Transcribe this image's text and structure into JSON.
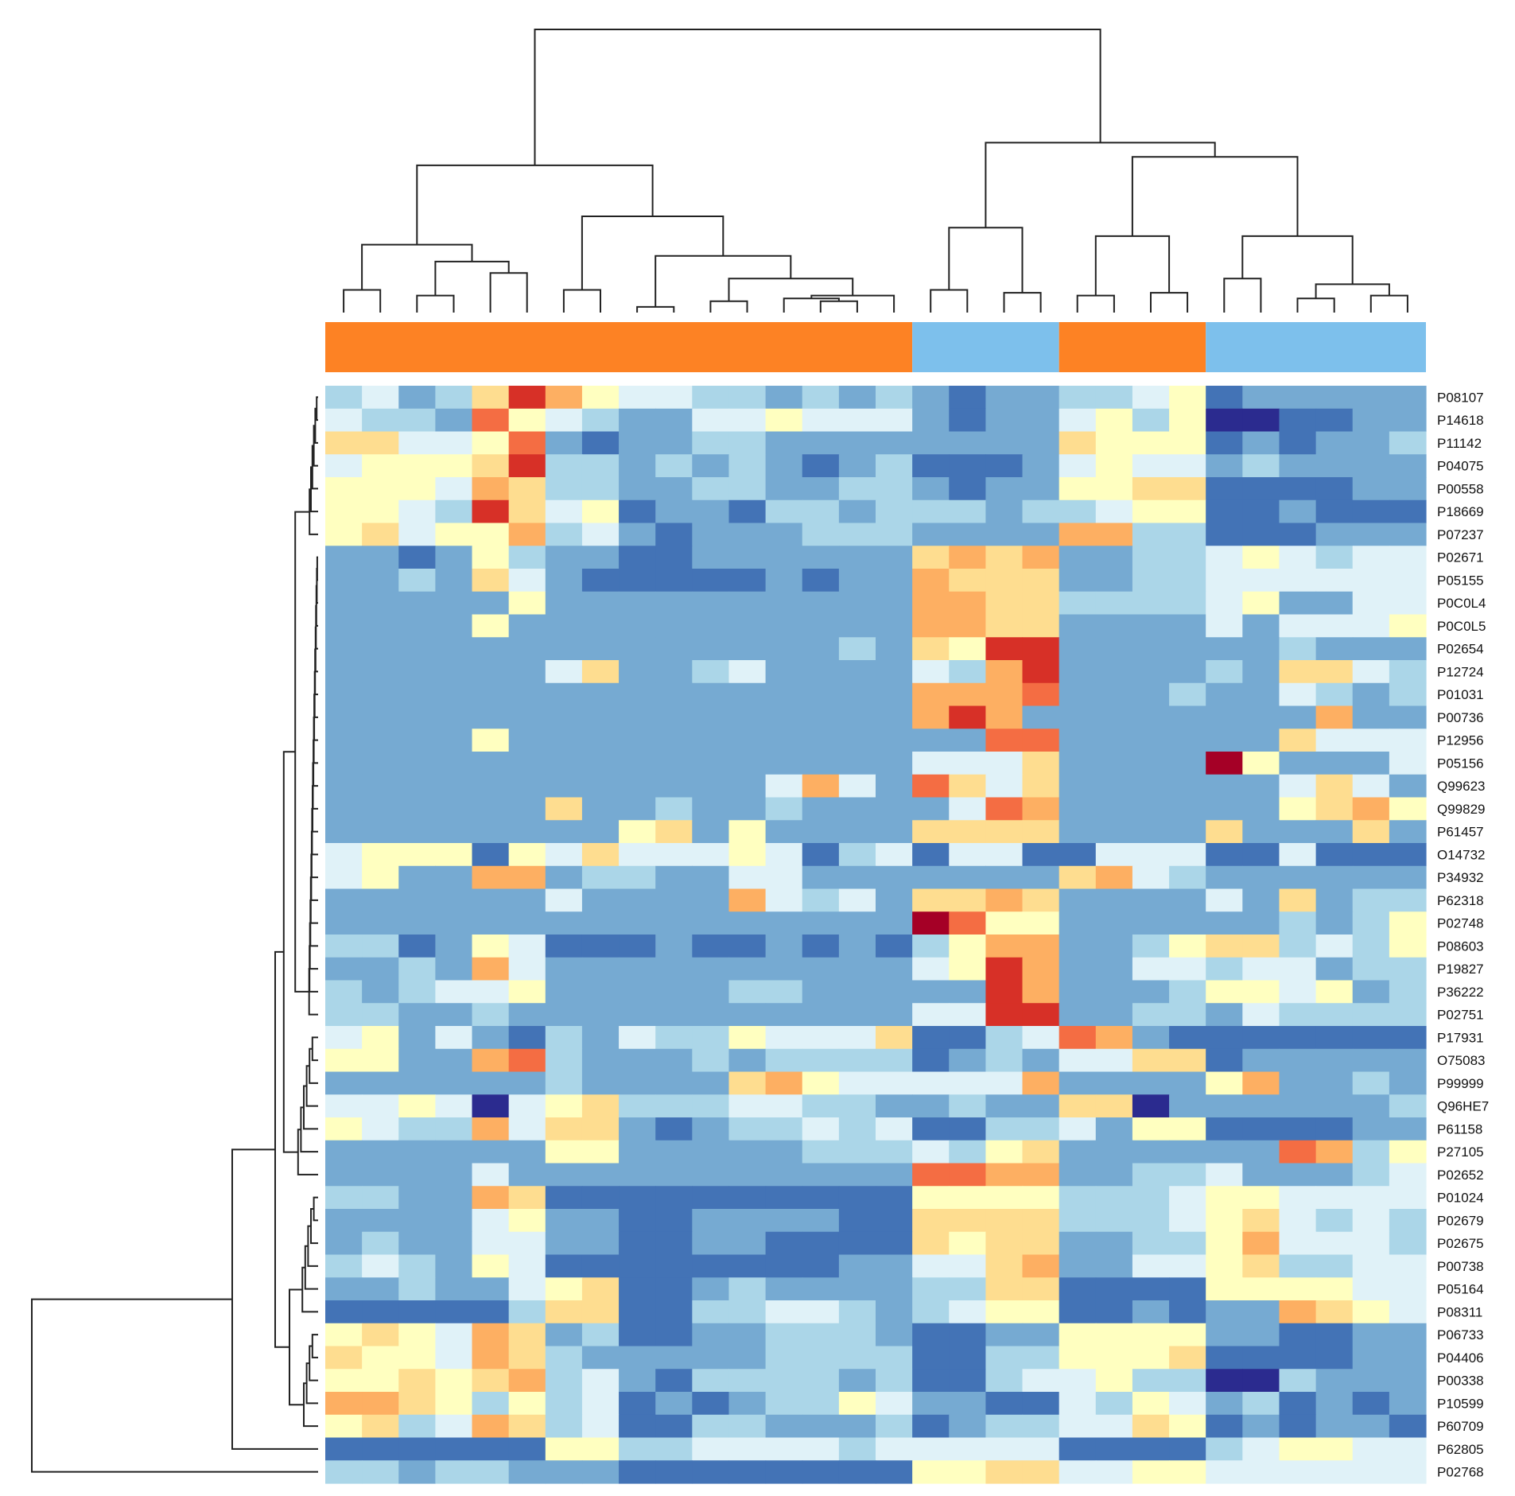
{
  "chart_data": {
    "type": "heatmap",
    "title": "",
    "xlabel": "",
    "ylabel": "",
    "rows": [
      "P08107",
      "P14618",
      "P11142",
      "P04075",
      "P00558",
      "P18669",
      "P07237",
      "P02671",
      "P05155",
      "P0C0L4",
      "P0C0L5",
      "P02654",
      "P12724",
      "P01031",
      "P00736",
      "P12956",
      "P05156",
      "Q99623",
      "Q99829",
      "P61457",
      "O14732",
      "P34932",
      "P62318",
      "P02748",
      "P08603",
      "P19827",
      "P36222",
      "P02751",
      "P17931",
      "O75083",
      "P99999",
      "Q96HE7",
      "P61158",
      "P27105",
      "P02652",
      "P01024",
      "P02679",
      "P02675",
      "P00738",
      "P05164",
      "P08311",
      "P06733",
      "P04406",
      "P00338",
      "P10599",
      "P60709",
      "P62805",
      "P02768"
    ],
    "column_groups": [
      {
        "color": "#fd8224",
        "count": 16
      },
      {
        "color": "#7dc0ec",
        "count": 4
      },
      {
        "color": "#fd8224",
        "count": 4
      },
      {
        "color": "#7dc0ec",
        "count": 6
      }
    ],
    "color_scale": [
      "#2b2b8f",
      "#4373b6",
      "#76aad2",
      "#abd6e8",
      "#e0f2f8",
      "#ffffc0",
      "#fedd90",
      "#fdaf62",
      "#f46d43",
      "#d73027",
      "#a50026"
    ],
    "value_range": [
      -5,
      5
    ],
    "values": [
      [
        -2,
        -1,
        -3,
        -2,
        1,
        4,
        2,
        0,
        -1,
        -1,
        -2,
        -2,
        -3,
        -2,
        -3,
        -2,
        -3,
        -4,
        -3,
        -3,
        -2,
        -2,
        -1,
        0,
        -4,
        -3,
        -3,
        -3,
        -3,
        -3
      ],
      [
        -1,
        -2,
        -2,
        -3,
        3,
        0,
        -1,
        -2,
        -3,
        -3,
        -1,
        -1,
        0,
        -1,
        -1,
        -1,
        -3,
        -4,
        -3,
        -3,
        -1,
        0,
        -2,
        0,
        -5,
        -5,
        -4,
        -4,
        -3,
        -3
      ],
      [
        1,
        1,
        -1,
        -1,
        0,
        3,
        -3,
        -4,
        -3,
        -3,
        -2,
        -2,
        -3,
        -3,
        -3,
        -3,
        -3,
        -3,
        -3,
        -3,
        1,
        0,
        0,
        0,
        -4,
        -3,
        -4,
        -3,
        -3,
        -2
      ],
      [
        -1,
        0,
        0,
        0,
        1,
        4,
        -2,
        -2,
        -3,
        -2,
        -3,
        -2,
        -3,
        -4,
        -3,
        -2,
        -4,
        -4,
        -4,
        -3,
        -1,
        0,
        -1,
        -1,
        -3,
        -2,
        -3,
        -3,
        -3,
        -3
      ],
      [
        0,
        0,
        0,
        -1,
        2,
        1,
        -2,
        -2,
        -3,
        -3,
        -2,
        -2,
        -3,
        -3,
        -2,
        -2,
        -3,
        -4,
        -3,
        -3,
        0,
        0,
        1,
        1,
        -4,
        -4,
        -4,
        -4,
        -3,
        -3
      ],
      [
        0,
        0,
        -1,
        -2,
        4,
        1,
        -1,
        0,
        -4,
        -3,
        -3,
        -4,
        -2,
        -2,
        -3,
        -2,
        -2,
        -2,
        -3,
        -2,
        -2,
        -1,
        0,
        0,
        -4,
        -4,
        -3,
        -4,
        -4,
        -4
      ],
      [
        0,
        1,
        -1,
        0,
        0,
        2,
        -2,
        -1,
        -3,
        -4,
        -3,
        -3,
        -3,
        -2,
        -2,
        -2,
        -3,
        -3,
        -3,
        -3,
        2,
        2,
        -2,
        -2,
        -4,
        -4,
        -4,
        -3,
        -3,
        -3
      ],
      [
        -3,
        -3,
        -4,
        -3,
        0,
        -2,
        -3,
        -3,
        -4,
        -4,
        -3,
        -3,
        -3,
        -3,
        -3,
        -3,
        1,
        2,
        1,
        2,
        -3,
        -3,
        -2,
        -2,
        -1,
        0,
        -1,
        -2,
        -1,
        -1
      ],
      [
        -3,
        -3,
        -2,
        -3,
        1,
        -1,
        -3,
        -4,
        -4,
        -4,
        -4,
        -4,
        -3,
        -4,
        -3,
        -3,
        2,
        1,
        1,
        1,
        -3,
        -3,
        -2,
        -2,
        -1,
        -1,
        -1,
        -1,
        -1,
        -1
      ],
      [
        -3,
        -3,
        -3,
        -3,
        -3,
        0,
        -3,
        -3,
        -3,
        -3,
        -3,
        -3,
        -3,
        -3,
        -3,
        -3,
        2,
        2,
        1,
        1,
        -2,
        -2,
        -2,
        -2,
        -1,
        0,
        -3,
        -3,
        -1,
        -1
      ],
      [
        -3,
        -3,
        -3,
        -3,
        0,
        -3,
        -3,
        -3,
        -3,
        -3,
        -3,
        -3,
        -3,
        -3,
        -3,
        -3,
        2,
        2,
        1,
        1,
        -3,
        -3,
        -3,
        -3,
        -1,
        -3,
        -1,
        -1,
        -1,
        0
      ],
      [
        -3,
        -3,
        -3,
        -3,
        -3,
        -3,
        -3,
        -3,
        -3,
        -3,
        -3,
        -3,
        -3,
        -3,
        -2,
        -3,
        1,
        0,
        4,
        4,
        -3,
        -3,
        -3,
        -3,
        -3,
        -3,
        -2,
        -3,
        -3,
        -3
      ],
      [
        -3,
        -3,
        -3,
        -3,
        -3,
        -3,
        -1,
        1,
        -3,
        -3,
        -2,
        -1,
        -3,
        -3,
        -3,
        -3,
        -1,
        -2,
        2,
        4,
        -3,
        -3,
        -3,
        -3,
        -2,
        -3,
        1,
        1,
        -1,
        -2
      ],
      [
        -3,
        -3,
        -3,
        -3,
        -3,
        -3,
        -3,
        -3,
        -3,
        -3,
        -3,
        -3,
        -3,
        -3,
        -3,
        -3,
        2,
        2,
        2,
        3,
        -3,
        -3,
        -3,
        -2,
        -3,
        -3,
        -1,
        -2,
        -3,
        -2
      ],
      [
        -3,
        -3,
        -3,
        -3,
        -3,
        -3,
        -3,
        -3,
        -3,
        -3,
        -3,
        -3,
        -3,
        -3,
        -3,
        -3,
        2,
        4,
        2,
        -3,
        -3,
        -3,
        -3,
        -3,
        -3,
        -3,
        -3,
        2,
        -3,
        -3
      ],
      [
        -3,
        -3,
        -3,
        -3,
        0,
        -3,
        -3,
        -3,
        -3,
        -3,
        -3,
        -3,
        -3,
        -3,
        -3,
        -3,
        -3,
        -3,
        3,
        3,
        -3,
        -3,
        -3,
        -3,
        -3,
        -3,
        1,
        -1,
        -1,
        -1
      ],
      [
        -3,
        -3,
        -3,
        -3,
        -3,
        -3,
        -3,
        -3,
        -3,
        -3,
        -3,
        -3,
        -3,
        -3,
        -3,
        -3,
        -1,
        -1,
        -1,
        1,
        -3,
        -3,
        -3,
        -3,
        5,
        0,
        -3,
        -3,
        -3,
        -1
      ],
      [
        -3,
        -3,
        -3,
        -3,
        -3,
        -3,
        -3,
        -3,
        -3,
        -3,
        -3,
        -3,
        -1,
        2,
        -1,
        -3,
        3,
        1,
        -1,
        1,
        -3,
        -3,
        -3,
        -3,
        -3,
        -3,
        -1,
        1,
        -1,
        -3
      ],
      [
        -3,
        -3,
        -3,
        -3,
        -3,
        -3,
        1,
        -3,
        -3,
        -2,
        -3,
        -3,
        -2,
        -3,
        -3,
        -3,
        -3,
        -1,
        3,
        2,
        -3,
        -3,
        -3,
        -3,
        -3,
        -3,
        0,
        1,
        2,
        0
      ],
      [
        -3,
        -3,
        -3,
        -3,
        -3,
        -3,
        -3,
        -3,
        0,
        1,
        -3,
        0,
        -3,
        -3,
        -3,
        -3,
        1,
        1,
        1,
        1,
        -3,
        -3,
        -3,
        -3,
        1,
        -3,
        -3,
        -3,
        1,
        -3
      ],
      [
        -1,
        0,
        0,
        0,
        -4,
        0,
        -1,
        1,
        -1,
        -1,
        -1,
        0,
        -1,
        -4,
        -2,
        -1,
        -4,
        -1,
        -1,
        -4,
        -4,
        -1,
        -1,
        -1,
        -4,
        -4,
        -1,
        -4,
        -4,
        -4
      ],
      [
        -1,
        0,
        -3,
        -3,
        2,
        2,
        -3,
        -2,
        -2,
        -3,
        -3,
        -1,
        -1,
        -3,
        -3,
        -3,
        -3,
        -3,
        -3,
        -3,
        1,
        2,
        -1,
        -2,
        -3,
        -3,
        -3,
        -3,
        -3,
        -3
      ],
      [
        -3,
        -3,
        -3,
        -3,
        -3,
        -3,
        -1,
        -3,
        -3,
        -3,
        -3,
        2,
        -1,
        -2,
        -1,
        -3,
        1,
        1,
        2,
        1,
        -3,
        -3,
        -3,
        -3,
        -1,
        -3,
        1,
        -3,
        -2,
        -2
      ],
      [
        -3,
        -3,
        -3,
        -3,
        -3,
        -3,
        -3,
        -3,
        -3,
        -3,
        -3,
        -3,
        -3,
        -3,
        -3,
        -3,
        5,
        3,
        0,
        0,
        -3,
        -3,
        -3,
        -3,
        -3,
        -3,
        -2,
        -3,
        -2,
        0
      ],
      [
        -2,
        -2,
        -4,
        -3,
        0,
        -1,
        -4,
        -4,
        -4,
        -3,
        -4,
        -4,
        -3,
        -4,
        -3,
        -4,
        -2,
        0,
        2,
        2,
        -3,
        -3,
        -2,
        0,
        1,
        1,
        -2,
        -1,
        -2,
        0
      ],
      [
        -3,
        -3,
        -2,
        -3,
        2,
        -1,
        -3,
        -3,
        -3,
        -3,
        -3,
        -3,
        -3,
        -3,
        -3,
        -3,
        -1,
        0,
        4,
        2,
        -3,
        -3,
        -1,
        -1,
        -2,
        -1,
        -1,
        -3,
        -2,
        -2
      ],
      [
        -2,
        -3,
        -2,
        -1,
        -1,
        0,
        -3,
        -3,
        -3,
        -3,
        -3,
        -2,
        -2,
        -3,
        -3,
        -3,
        -3,
        -3,
        4,
        2,
        -3,
        -3,
        -3,
        -2,
        0,
        0,
        -1,
        0,
        -3,
        -2
      ],
      [
        -2,
        -2,
        -3,
        -3,
        -2,
        -3,
        -3,
        -3,
        -3,
        -3,
        -3,
        -3,
        -3,
        -3,
        -3,
        -3,
        -1,
        -1,
        4,
        4,
        -3,
        -3,
        -2,
        -2,
        -3,
        -1,
        -2,
        -2,
        -2,
        -2
      ],
      [
        -1,
        0,
        -3,
        -1,
        -3,
        -4,
        -2,
        -3,
        -1,
        -2,
        -2,
        0,
        -1,
        -1,
        -1,
        1,
        -4,
        -4,
        -2,
        -1,
        3,
        2,
        -3,
        -4,
        -4,
        -4,
        -4,
        -4,
        -4,
        -4
      ],
      [
        0,
        0,
        -3,
        -3,
        2,
        3,
        -2,
        -3,
        -3,
        -3,
        -2,
        -3,
        -2,
        -2,
        -2,
        -2,
        -4,
        -3,
        -2,
        -3,
        -1,
        -1,
        1,
        1,
        -4,
        -3,
        -3,
        -3,
        -3,
        -3
      ],
      [
        -3,
        -3,
        -3,
        -3,
        -3,
        -3,
        -2,
        -3,
        -3,
        -3,
        -3,
        1,
        2,
        0,
        -1,
        -1,
        -1,
        -1,
        -1,
        2,
        -3,
        -3,
        -3,
        -3,
        0,
        2,
        -3,
        -3,
        -2,
        -3
      ],
      [
        -1,
        -1,
        0,
        -1,
        -5,
        -1,
        0,
        1,
        -2,
        -2,
        -2,
        -1,
        -1,
        -2,
        -2,
        -3,
        -3,
        -2,
        -3,
        -3,
        1,
        1,
        -5,
        -3,
        -3,
        -3,
        -3,
        -3,
        -3,
        -2
      ],
      [
        0,
        -1,
        -2,
        -2,
        2,
        -1,
        1,
        1,
        -3,
        -4,
        -3,
        -2,
        -2,
        -1,
        -2,
        -1,
        -4,
        -4,
        -2,
        -2,
        -1,
        -3,
        0,
        0,
        -4,
        -4,
        -4,
        -4,
        -3,
        -3
      ],
      [
        -3,
        -3,
        -3,
        -3,
        -3,
        -3,
        0,
        0,
        -3,
        -3,
        -3,
        -3,
        -3,
        -2,
        -2,
        -2,
        -1,
        -2,
        0,
        1,
        -3,
        -3,
        -3,
        -3,
        -3,
        -3,
        3,
        2,
        -2,
        0
      ],
      [
        -3,
        -3,
        -3,
        -3,
        -1,
        -3,
        -3,
        -3,
        -3,
        -3,
        -3,
        -3,
        -3,
        -3,
        -3,
        -3,
        3,
        3,
        2,
        2,
        -3,
        -3,
        -2,
        -2,
        -1,
        -3,
        -3,
        -3,
        -2,
        -1
      ],
      [
        -2,
        -2,
        -3,
        -3,
        2,
        1,
        -4,
        -4,
        -4,
        -4,
        -4,
        -4,
        -4,
        -4,
        -4,
        -4,
        0,
        0,
        0,
        0,
        -2,
        -2,
        -2,
        -1,
        0,
        0,
        -1,
        -1,
        -1,
        -1
      ],
      [
        -3,
        -3,
        -3,
        -3,
        -1,
        0,
        -3,
        -3,
        -4,
        -4,
        -3,
        -3,
        -3,
        -3,
        -4,
        -4,
        1,
        1,
        1,
        1,
        -2,
        -2,
        -2,
        -1,
        0,
        1,
        -1,
        -2,
        -1,
        -2
      ],
      [
        -3,
        -2,
        -3,
        -3,
        -1,
        -1,
        -3,
        -3,
        -4,
        -4,
        -3,
        -3,
        -4,
        -4,
        -4,
        -4,
        1,
        0,
        1,
        1,
        -3,
        -3,
        -2,
        -2,
        0,
        2,
        -1,
        -1,
        -1,
        -2
      ],
      [
        -2,
        -1,
        -2,
        -3,
        0,
        -1,
        -4,
        -4,
        -4,
        -4,
        -4,
        -4,
        -4,
        -4,
        -3,
        -3,
        -1,
        -1,
        1,
        2,
        -3,
        -3,
        -1,
        -1,
        0,
        1,
        -2,
        -2,
        -1,
        -1
      ],
      [
        -3,
        -3,
        -2,
        -3,
        -3,
        -1,
        0,
        1,
        -4,
        -4,
        -3,
        -2,
        -3,
        -3,
        -3,
        -3,
        -2,
        -2,
        1,
        1,
        -4,
        -4,
        -4,
        -4,
        0,
        0,
        0,
        0,
        -1,
        -1
      ],
      [
        -4,
        -4,
        -4,
        -4,
        -4,
        -2,
        1,
        1,
        -4,
        -4,
        -2,
        -2,
        -1,
        -1,
        -2,
        -3,
        -2,
        -1,
        0,
        0,
        -4,
        -4,
        -3,
        -4,
        -3,
        -3,
        2,
        1,
        0,
        -1
      ],
      [
        0,
        1,
        0,
        -1,
        2,
        1,
        -3,
        -2,
        -4,
        -4,
        -3,
        -3,
        -2,
        -2,
        -2,
        -3,
        -4,
        -4,
        -3,
        -3,
        0,
        0,
        0,
        0,
        -3,
        -3,
        -4,
        -4,
        -3,
        -3
      ],
      [
        1,
        0,
        0,
        -1,
        2,
        1,
        -2,
        -3,
        -3,
        -3,
        -3,
        -3,
        -2,
        -2,
        -2,
        -2,
        -4,
        -4,
        -2,
        -2,
        0,
        0,
        0,
        1,
        -4,
        -4,
        -4,
        -4,
        -3,
        -3
      ],
      [
        0,
        0,
        1,
        0,
        1,
        2,
        -2,
        -1,
        -3,
        -4,
        -2,
        -2,
        -2,
        -2,
        -3,
        -2,
        -4,
        -4,
        -2,
        -1,
        -1,
        0,
        -2,
        -2,
        -5,
        -5,
        -2,
        -3,
        -3,
        -3
      ],
      [
        2,
        2,
        1,
        0,
        -2,
        0,
        -2,
        -1,
        -4,
        -3,
        -4,
        -3,
        -2,
        -2,
        0,
        -1,
        -3,
        -3,
        -4,
        -4,
        -1,
        -2,
        0,
        -1,
        -3,
        -2,
        -4,
        -3,
        -4,
        -3
      ],
      [
        0,
        1,
        -2,
        -1,
        2,
        1,
        -2,
        -1,
        -4,
        -4,
        -2,
        -2,
        -3,
        -3,
        -3,
        -2,
        -4,
        -3,
        -2,
        -2,
        -1,
        -1,
        1,
        0,
        -4,
        -3,
        -4,
        -3,
        -3,
        -4
      ],
      [
        -4,
        -4,
        -4,
        -4,
        -4,
        -4,
        0,
        0,
        -2,
        -2,
        -1,
        -1,
        -1,
        -1,
        -2,
        -1,
        -1,
        -1,
        -1,
        -1,
        -4,
        -4,
        -4,
        -4,
        -2,
        -1,
        0,
        0,
        -1,
        -1
      ],
      [
        -2,
        -2,
        -3,
        -2,
        -2,
        -3,
        -3,
        -3,
        -4,
        -4,
        -4,
        -4,
        -4,
        -4,
        -4,
        -4,
        0,
        0,
        1,
        1,
        -1,
        -1,
        0,
        0,
        -1,
        -1,
        -1,
        -1,
        -1,
        -1
      ]
    ]
  }
}
